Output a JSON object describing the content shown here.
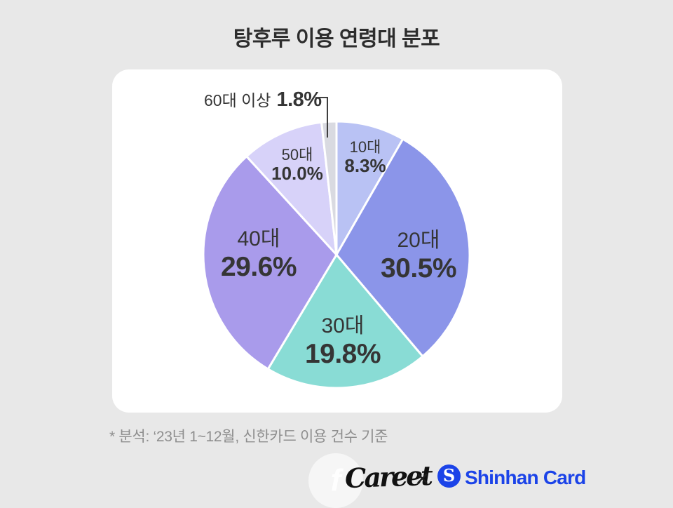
{
  "title": "탕후루 이용 연령대 분포",
  "chart_data": {
    "type": "pie",
    "title": "탕후루 이용 연령대 분포",
    "unit": "%",
    "start_angle_deg": 0,
    "direction": "clockwise",
    "legend_position": "none",
    "slices": [
      {
        "label": "10대",
        "value": 8.3,
        "display": "8.3%",
        "color": "#b9c2f4"
      },
      {
        "label": "20대",
        "value": 30.5,
        "display": "30.5%",
        "color": "#8b95e9"
      },
      {
        "label": "30대",
        "value": 19.8,
        "display": "19.8%",
        "color": "#89dcd5"
      },
      {
        "label": "40대",
        "value": 29.6,
        "display": "29.6%",
        "color": "#a99beb"
      },
      {
        "label": "50대",
        "value": 10.0,
        "display": "10.0%",
        "color": "#d7d2f9"
      },
      {
        "label": "60대 이상",
        "value": 1.8,
        "display": "1.8%",
        "color": "#d9dae1"
      }
    ]
  },
  "footnote": "* 분석: ‘23년 1~12월, 신한카드 이용 건수 기준",
  "footer": {
    "watermark_glyph": "f",
    "careet_logo": "Careet",
    "separator": "✕",
    "shinhan_symbol": "S",
    "shinhan_logo": "Shinhan Card",
    "shinhan_blue": "#1b43e8"
  }
}
